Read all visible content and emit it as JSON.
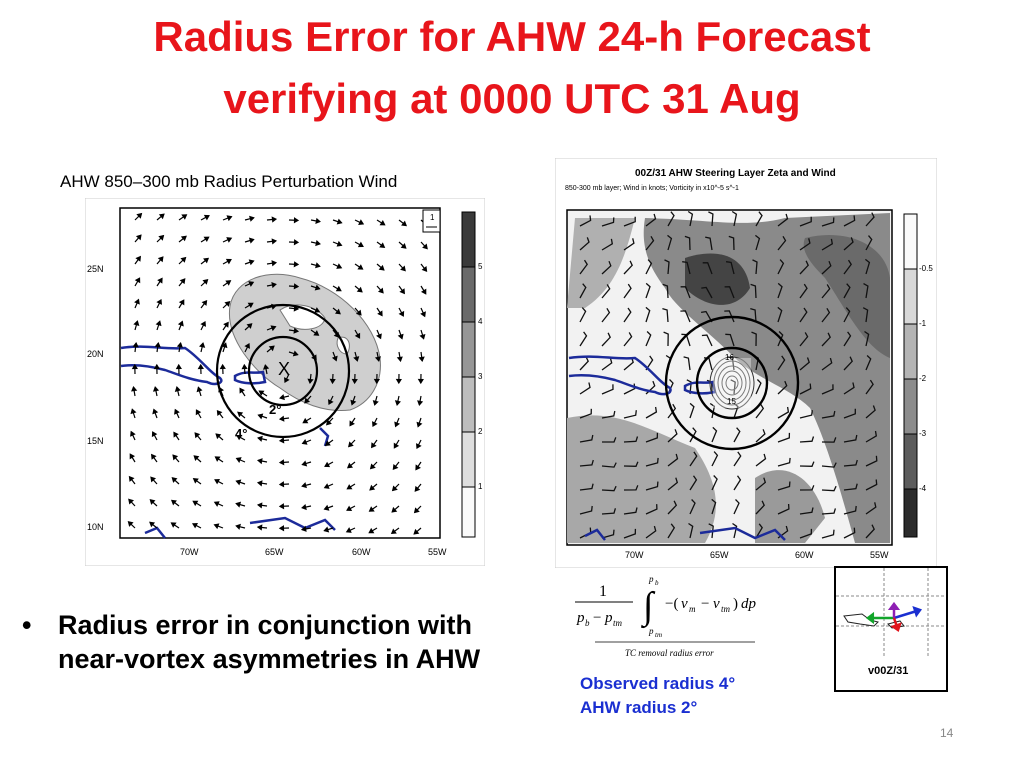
{
  "slide": {
    "title_line1": "Radius Error for AHW 24-h Forecast",
    "title_line2": "verifying at 0000 UTC 31 Aug",
    "left_caption": "AHW 850–300 mb Radius Perturbation Wind",
    "page_number": "14"
  },
  "left_map": {
    "lat_labels": [
      "25N",
      "20N",
      "15N",
      "10N"
    ],
    "lon_labels": [
      "70W",
      "65W",
      "60W",
      "55W"
    ],
    "colorbar_labels": [
      "5",
      "4",
      "3",
      "2",
      "1"
    ],
    "ref_vector_label": "1",
    "center_marker": "X",
    "ring_labels": [
      "2°",
      "4°"
    ]
  },
  "right_map": {
    "title": "00Z/31 AHW Steering Layer Zeta and Wind",
    "subtitle": "850-300 mb layer; Wind in knots; Vorticity in x10^-5 s^-1",
    "lon_labels": [
      "70W",
      "65W",
      "60W",
      "55W"
    ],
    "colorbar_labels": [
      "-0.5",
      "-1",
      "-2",
      "-3",
      "-4"
    ],
    "contour_labels": [
      "16",
      "15"
    ]
  },
  "equation": {
    "caption": "TC removal radius error"
  },
  "bullet": {
    "symbol": "•",
    "text": "Radius error in conjunction with near-vortex asymmetries in AHW"
  },
  "legend": {
    "observed": "Observed radius 4°",
    "ahw": "AHW radius 2°"
  },
  "inset": {
    "label": "v00Z/31",
    "arrow_colors": [
      "#1a2fd1",
      "#11a52a",
      "#8e1fb3",
      "#e0141c"
    ]
  }
}
